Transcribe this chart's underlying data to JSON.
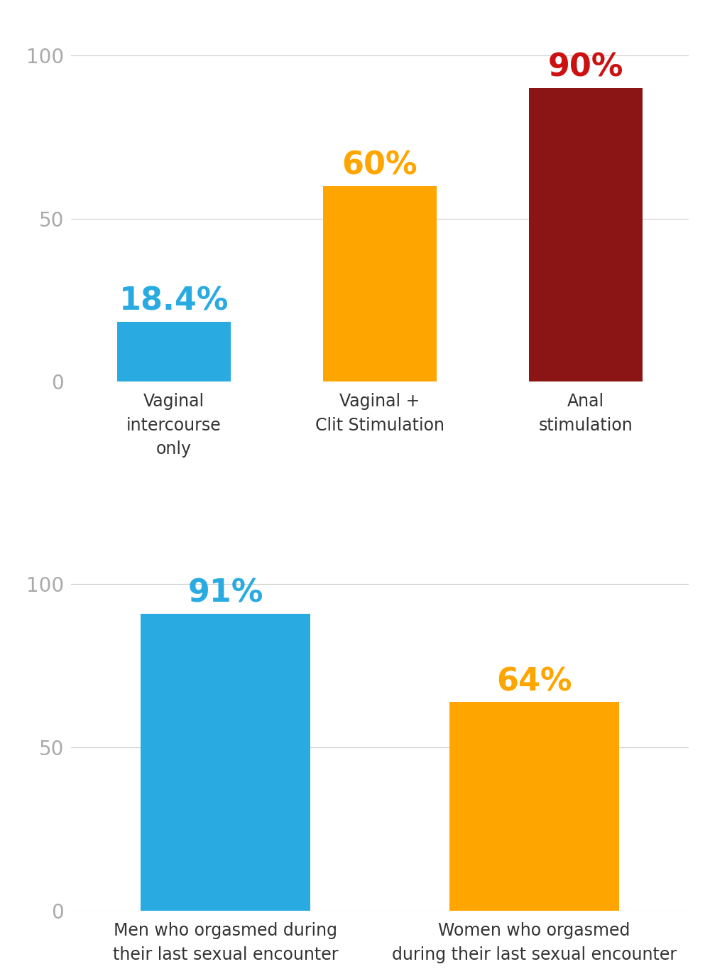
{
  "chart1": {
    "categories": [
      "Vaginal\nintercourse\nonly",
      "Vaginal +\nClit Stimulation",
      "Anal\nstimulation"
    ],
    "values": [
      18.4,
      60,
      90
    ],
    "colors": [
      "#29ABE2",
      "#FFA500",
      "#8B1515"
    ],
    "labels": [
      "18.4%",
      "60%",
      "90%"
    ],
    "label_colors": [
      "#29ABE2",
      "#FFA500",
      "#CC1111"
    ],
    "x_positions": [
      1,
      2,
      3
    ],
    "bar_width": 0.55
  },
  "chart2": {
    "categories": [
      "Men who orgasmed during\ntheir last sexual encounter",
      "Women who orgasmed\nduring their last sexual encounter"
    ],
    "values": [
      91,
      64
    ],
    "colors": [
      "#29ABE2",
      "#FFA500"
    ],
    "labels": [
      "91%",
      "64%"
    ],
    "label_colors": [
      "#29ABE2",
      "#FFA500"
    ],
    "x_positions": [
      1,
      2
    ],
    "bar_width": 0.55
  },
  "yticks": [
    0,
    50,
    100
  ],
  "ylim": [
    0,
    108
  ],
  "background_color": "#FFFFFF",
  "grid_color": "#CCCCCC",
  "tick_color": "#AAAAAA",
  "bar_label_fontsize": 32,
  "tick_fontsize": 20,
  "xlabel_fontsize": 17
}
